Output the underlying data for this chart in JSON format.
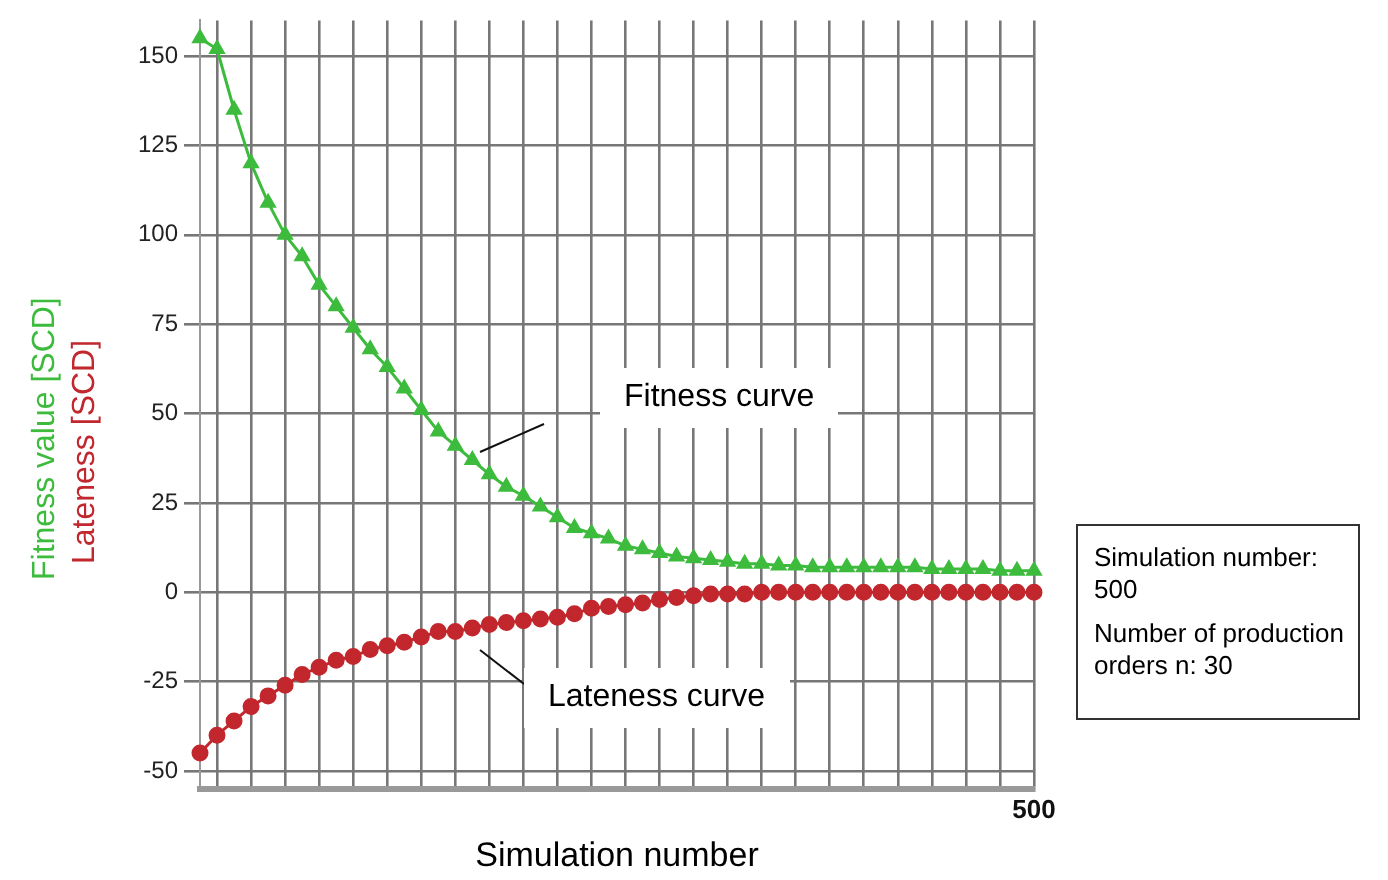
{
  "chart_data": {
    "type": "line",
    "xlabel": "Simulation number",
    "categories": [
      null,
      null,
      null,
      null,
      null,
      null,
      null,
      null,
      null,
      null,
      null,
      null,
      null,
      null,
      null,
      null,
      null,
      null,
      null,
      null,
      null,
      null,
      null,
      null,
      null,
      null,
      null,
      null,
      null,
      null,
      null,
      null,
      null,
      null,
      null,
      null,
      null,
      null,
      null,
      null,
      null,
      null,
      null,
      null,
      null,
      null,
      null,
      null,
      null,
      "500"
    ],
    "ylim": [
      -55,
      160
    ],
    "yticks": [
      -50,
      -25,
      0,
      25,
      50,
      75,
      100,
      125,
      150
    ],
    "grid": true,
    "legend": "left",
    "line_style": "solid",
    "series": [
      {
        "name": "Fitness value [SCD]",
        "color": "#3dbb3d",
        "marker": "triangle",
        "values": [
          155,
          152,
          135,
          120,
          109,
          100,
          94,
          86,
          80,
          74,
          68,
          63,
          57,
          51,
          45,
          41,
          37,
          33,
          29.5,
          27,
          24,
          21,
          18,
          16.5,
          15,
          13,
          12,
          11,
          10,
          9.5,
          9,
          8.5,
          8,
          8,
          7.5,
          7.5,
          7,
          7,
          7,
          7,
          7,
          7,
          7,
          6.5,
          6.5,
          6.5,
          6.5,
          6,
          6,
          6
        ]
      },
      {
        "name": "Lateness [SCD]",
        "color": "#c1272d",
        "marker": "circle",
        "values": [
          -45,
          -40,
          -36,
          -32,
          -29,
          -26,
          -23,
          -21,
          -19,
          -18,
          -16,
          -15,
          -14,
          -12.5,
          -11,
          -11,
          -10,
          -9,
          -8.5,
          -8,
          -7.5,
          -7,
          -6,
          -4.5,
          -4,
          -3.5,
          -3,
          -2,
          -1.5,
          -1,
          -0.5,
          -0.5,
          -0.5,
          0,
          0,
          0,
          0,
          0,
          0,
          0,
          0,
          0,
          0,
          0,
          0,
          0,
          0,
          0,
          0,
          0
        ]
      }
    ],
    "annotations": [
      "Fitness curve",
      "Lateness curve",
      "Simulation number: 500",
      "Number of production orders n: 30"
    ]
  }
}
